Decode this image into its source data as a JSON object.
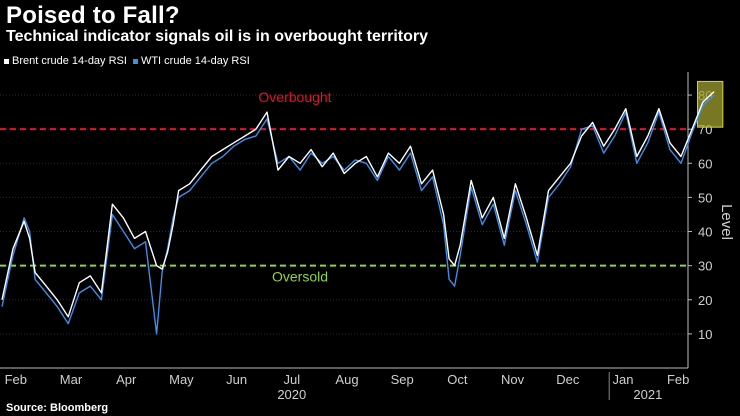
{
  "title": "Poised to Fall?",
  "subtitle": "Technical indicator signals oil is in overbought territory",
  "source": "Source: Bloomberg",
  "colors": {
    "brent": "#ffffff",
    "wti": "#3d8ee8",
    "overbought": "#e8102a",
    "oversold": "#8fd63a",
    "highlight": "#a0a030"
  },
  "chart_data": {
    "type": "line",
    "title": "Poised to Fall?",
    "ylabel": "Level",
    "ylim": [
      0,
      85
    ],
    "yticks": [
      10,
      20,
      30,
      40,
      50,
      60,
      70,
      80
    ],
    "months": [
      "Feb",
      "Mar",
      "Apr",
      "May",
      "Jun",
      "Jul",
      "Aug",
      "Sep",
      "Oct",
      "Nov",
      "Dec",
      "Jan",
      "Feb"
    ],
    "years": [
      "2020",
      "2021"
    ],
    "overbought": {
      "value": 70,
      "label": "Overbought"
    },
    "oversold": {
      "value": 30,
      "label": "Oversold"
    },
    "highlight_range": {
      "start_month": 12.6,
      "end_month": 12.95,
      "y0": 70,
      "y1": 84
    },
    "series": [
      {
        "name": "Brent crude 14-day RSI",
        "color": "#ffffff",
        "x": [
          0,
          0.2,
          0.4,
          0.5,
          0.6,
          0.8,
          1.0,
          1.2,
          1.4,
          1.6,
          1.8,
          2.0,
          2.2,
          2.4,
          2.6,
          2.8,
          2.9,
          3.0,
          3.1,
          3.2,
          3.4,
          3.6,
          3.8,
          4.0,
          4.2,
          4.4,
          4.6,
          4.8,
          5.0,
          5.2,
          5.4,
          5.6,
          5.8,
          6.0,
          6.2,
          6.4,
          6.6,
          6.8,
          7.0,
          7.2,
          7.4,
          7.6,
          7.8,
          8.0,
          8.1,
          8.2,
          8.3,
          8.5,
          8.7,
          8.9,
          9.1,
          9.3,
          9.5,
          9.7,
          9.9,
          10.1,
          10.3,
          10.5,
          10.7,
          10.9,
          11.1,
          11.3,
          11.5,
          11.7,
          11.9,
          12.1,
          12.3,
          12.5,
          12.7,
          12.9
        ],
        "values": [
          20,
          35,
          43,
          38,
          28,
          24,
          20,
          15,
          25,
          27,
          22,
          48,
          44,
          38,
          40,
          30,
          29,
          34,
          42,
          52,
          54,
          58,
          62,
          64,
          66,
          68,
          70,
          75,
          58,
          62,
          60,
          64,
          59,
          63,
          57,
          60,
          62,
          56,
          63,
          60,
          65,
          54,
          58,
          45,
          32,
          30,
          36,
          55,
          44,
          50,
          38,
          54,
          44,
          33,
          52,
          56,
          60,
          68,
          72,
          65,
          70,
          76,
          62,
          68,
          76,
          66,
          62,
          70,
          78,
          81
        ]
      },
      {
        "name": "WTI crude 14-day RSI",
        "color": "#3d8ee8",
        "x": [
          0,
          0.2,
          0.4,
          0.5,
          0.6,
          0.8,
          1.0,
          1.2,
          1.4,
          1.6,
          1.8,
          2.0,
          2.2,
          2.4,
          2.6,
          2.8,
          2.9,
          3.0,
          3.1,
          3.2,
          3.4,
          3.6,
          3.8,
          4.0,
          4.2,
          4.4,
          4.6,
          4.8,
          5.0,
          5.2,
          5.4,
          5.6,
          5.8,
          6.0,
          6.2,
          6.4,
          6.6,
          6.8,
          7.0,
          7.2,
          7.4,
          7.6,
          7.8,
          8.0,
          8.1,
          8.2,
          8.3,
          8.5,
          8.7,
          8.9,
          9.1,
          9.3,
          9.5,
          9.7,
          9.9,
          10.1,
          10.3,
          10.5,
          10.7,
          10.9,
          11.1,
          11.3,
          11.5,
          11.7,
          11.9,
          12.1,
          12.3,
          12.5,
          12.7,
          12.9
        ],
        "values": [
          18,
          33,
          44,
          40,
          26,
          22,
          18,
          13,
          22,
          24,
          20,
          45,
          40,
          35,
          37,
          10,
          28,
          35,
          44,
          50,
          52,
          56,
          60,
          62,
          65,
          67,
          68,
          73,
          60,
          62,
          58,
          63,
          60,
          62,
          58,
          61,
          60,
          55,
          62,
          58,
          63,
          52,
          56,
          42,
          26,
          24,
          33,
          53,
          42,
          48,
          36,
          52,
          42,
          31,
          50,
          54,
          59,
          70,
          71,
          63,
          68,
          75,
          60,
          66,
          75,
          64,
          60,
          69,
          77,
          80
        ]
      }
    ]
  }
}
